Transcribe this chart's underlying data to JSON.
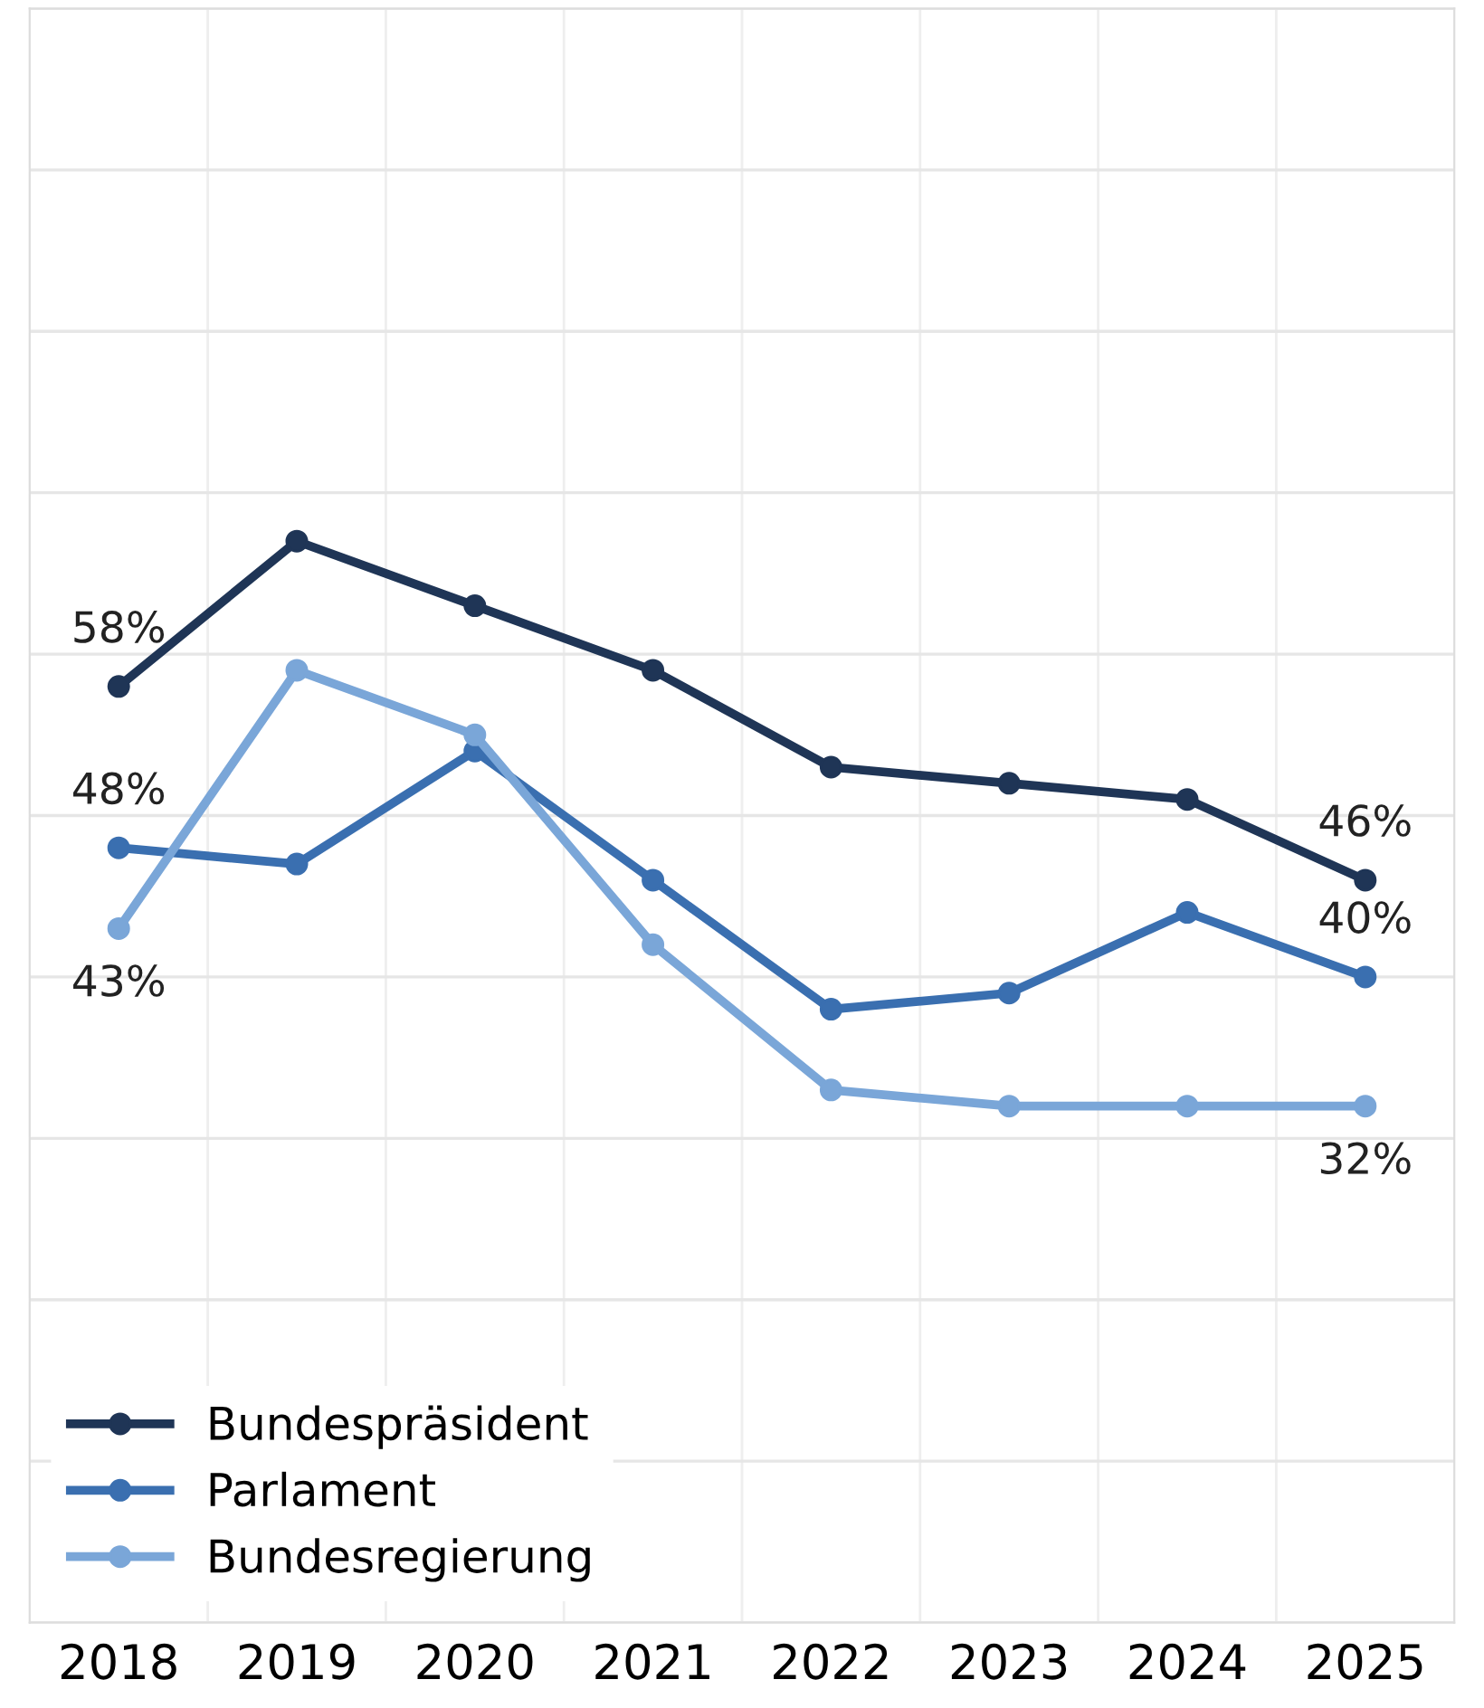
{
  "chart_data": {
    "type": "line",
    "categories": [
      "2018",
      "2019",
      "2020",
      "2021",
      "2022",
      "2023",
      "2024",
      "2025"
    ],
    "series": [
      {
        "name": "Bundespräsident",
        "color": "#1f3556",
        "values": [
          58,
          67,
          63,
          59,
          53,
          52,
          51,
          46
        ],
        "value_labels": [
          "58%",
          null,
          null,
          null,
          null,
          null,
          null,
          "46%"
        ]
      },
      {
        "name": "Parlament",
        "color": "#3a6fb0",
        "values": [
          48,
          47,
          54,
          46,
          38,
          39,
          44,
          40
        ],
        "value_labels": [
          "48%",
          null,
          null,
          null,
          null,
          null,
          null,
          "40%"
        ]
      },
      {
        "name": "Bundesregierung",
        "color": "#7aa6d8",
        "values": [
          43,
          59,
          55,
          42,
          33,
          32,
          32,
          32
        ],
        "value_labels": [
          "43%",
          null,
          null,
          null,
          null,
          null,
          null,
          "32%"
        ]
      }
    ],
    "ylim": [
      0,
      100
    ],
    "yticks": [
      {
        "value": 0,
        "label": null
      },
      {
        "value": 10,
        "label": null
      },
      {
        "value": 20,
        "label": null
      },
      {
        "value": 30,
        "label": null
      },
      {
        "value": 40,
        "label": null
      },
      {
        "value": 50,
        "label": null
      },
      {
        "value": 60,
        "label": null
      },
      {
        "value": 70,
        "label": null
      },
      {
        "value": 80,
        "label": null
      },
      {
        "value": 90,
        "label": null
      },
      {
        "value": 100,
        "label": null
      }
    ],
    "tick_labels": "x",
    "grid": true,
    "legend": "bottom left",
    "marker": "circle",
    "line_style": "solid"
  }
}
